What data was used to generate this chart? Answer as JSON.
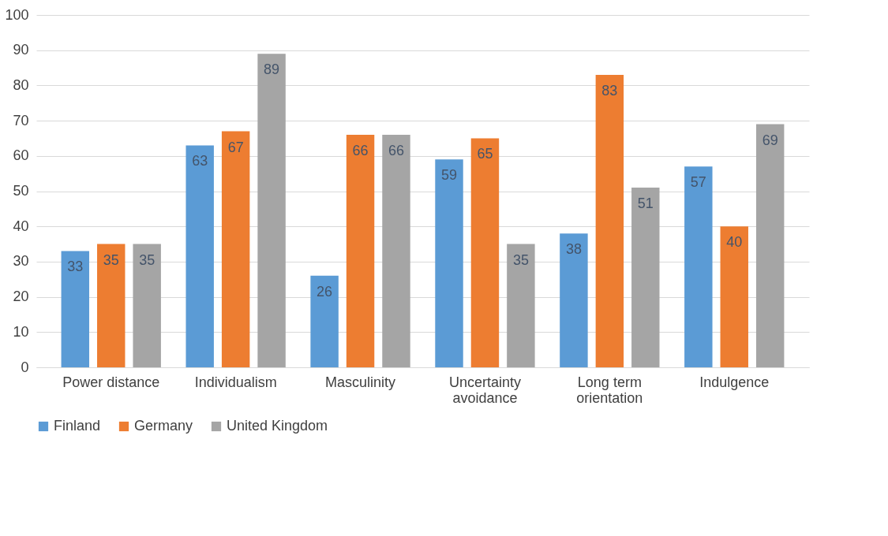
{
  "chart_data": {
    "type": "bar",
    "categories": [
      "Power distance",
      "Individualism",
      "Masculinity",
      "Uncertainty avoidance",
      "Long term orientation",
      "Indulgence"
    ],
    "series": [
      {
        "name": "Finland",
        "color": "#5b9bd5",
        "values": [
          33,
          63,
          26,
          59,
          38,
          57
        ]
      },
      {
        "name": "Germany",
        "color": "#ed7d31",
        "values": [
          35,
          67,
          66,
          65,
          83,
          40
        ]
      },
      {
        "name": "United Kingdom",
        "color": "#a5a5a5",
        "values": [
          35,
          89,
          66,
          35,
          51,
          69
        ]
      }
    ],
    "ylim": [
      0,
      100
    ],
    "yticks": [
      0,
      10,
      20,
      30,
      40,
      50,
      60,
      70,
      80,
      90,
      100
    ],
    "grid": "y",
    "legend": "bottom",
    "data_labels": true
  }
}
